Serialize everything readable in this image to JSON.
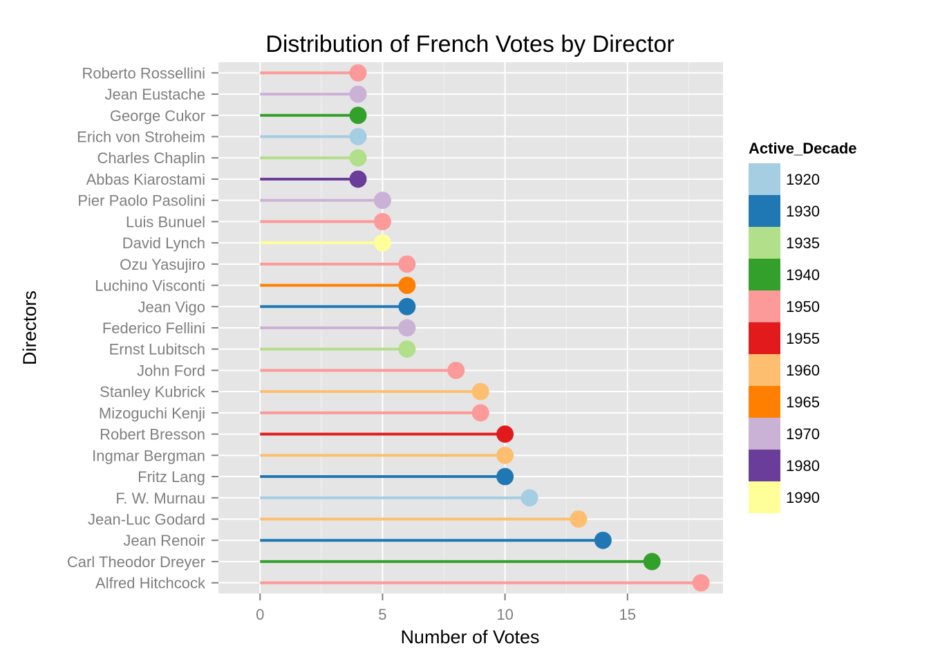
{
  "chart_data": {
    "type": "lollipop",
    "title": "Distribution of French Votes by Director",
    "xlabel": "Number of Votes",
    "ylabel": "Directors",
    "xlim": [
      -1.7,
      18.9
    ],
    "x_ticks": [
      0,
      5,
      10,
      15
    ],
    "grid": true,
    "legend_position": "right",
    "legend": {
      "title": "Active_Decade",
      "entries": [
        {
          "label": "1920",
          "color": "#A6CEE3"
        },
        {
          "label": "1930",
          "color": "#1F78B4"
        },
        {
          "label": "1935",
          "color": "#B2DF8A"
        },
        {
          "label": "1940",
          "color": "#33A02C"
        },
        {
          "label": "1950",
          "color": "#FB9A99"
        },
        {
          "label": "1955",
          "color": "#E31A1C"
        },
        {
          "label": "1960",
          "color": "#FDBF6F"
        },
        {
          "label": "1965",
          "color": "#FF7F00"
        },
        {
          "label": "1970",
          "color": "#CAB2D6"
        },
        {
          "label": "1980",
          "color": "#6A3D9A"
        },
        {
          "label": "1990",
          "color": "#FFFF99"
        }
      ]
    },
    "points": [
      {
        "director": "Roberto Rossellini",
        "votes": 4,
        "decade": "1950"
      },
      {
        "director": "Jean Eustache",
        "votes": 4,
        "decade": "1970"
      },
      {
        "director": "George Cukor",
        "votes": 4,
        "decade": "1940"
      },
      {
        "director": "Erich von Stroheim",
        "votes": 4,
        "decade": "1920"
      },
      {
        "director": "Charles Chaplin",
        "votes": 4,
        "decade": "1935"
      },
      {
        "director": "Abbas Kiarostami",
        "votes": 4,
        "decade": "1980"
      },
      {
        "director": "Pier Paolo Pasolini",
        "votes": 5,
        "decade": "1970"
      },
      {
        "director": "Luis Bunuel",
        "votes": 5,
        "decade": "1950"
      },
      {
        "director": "David Lynch",
        "votes": 5,
        "decade": "1990"
      },
      {
        "director": "Ozu Yasujiro",
        "votes": 6,
        "decade": "1950"
      },
      {
        "director": "Luchino Visconti",
        "votes": 6,
        "decade": "1965"
      },
      {
        "director": "Jean Vigo",
        "votes": 6,
        "decade": "1930"
      },
      {
        "director": "Federico Fellini",
        "votes": 6,
        "decade": "1970"
      },
      {
        "director": "Ernst Lubitsch",
        "votes": 6,
        "decade": "1935"
      },
      {
        "director": "John Ford",
        "votes": 8,
        "decade": "1950"
      },
      {
        "director": "Stanley Kubrick",
        "votes": 9,
        "decade": "1960"
      },
      {
        "director": "Mizoguchi Kenji",
        "votes": 9,
        "decade": "1950"
      },
      {
        "director": "Robert Bresson",
        "votes": 10,
        "decade": "1955"
      },
      {
        "director": "Ingmar Bergman",
        "votes": 10,
        "decade": "1960"
      },
      {
        "director": "Fritz Lang",
        "votes": 10,
        "decade": "1930"
      },
      {
        "director": "F. W. Murnau",
        "votes": 11,
        "decade": "1920"
      },
      {
        "director": "Jean-Luc Godard",
        "votes": 13,
        "decade": "1960"
      },
      {
        "director": "Jean Renoir",
        "votes": 14,
        "decade": "1930"
      },
      {
        "director": "Carl Theodor Dreyer",
        "votes": 16,
        "decade": "1940"
      },
      {
        "director": "Alfred Hitchcock",
        "votes": 18,
        "decade": "1950"
      }
    ]
  }
}
